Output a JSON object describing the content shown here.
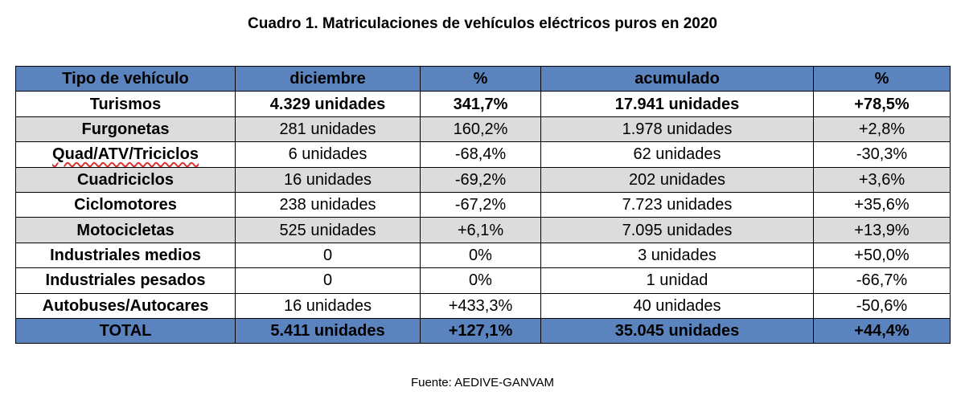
{
  "title": "Cuadro 1. Matriculaciones de vehículos eléctricos puros en 2020",
  "columns": [
    "Tipo de vehículo",
    "diciembre",
    "%",
    "acumulado",
    "%"
  ],
  "rows": [
    [
      "Turismos",
      "4.329 unidades",
      "341,7%",
      "17.941 unidades",
      "+78,5%"
    ],
    [
      "Furgonetas",
      "281 unidades",
      "160,2%",
      "1.978 unidades",
      "+2,8%"
    ],
    [
      "Quad/ATV/Triciclos",
      "6 unidades",
      "-68,4%",
      "62 unidades",
      "-30,3%"
    ],
    [
      "Cuadriciclos",
      "16 unidades",
      "-69,2%",
      "202 unidades",
      "+3,6%"
    ],
    [
      "Ciclomotores",
      "238 unidades",
      "-67,2%",
      "7.723 unidades",
      "+35,6%"
    ],
    [
      "Motocicletas",
      "525 unidades",
      "+6,1%",
      "7.095 unidades",
      "+13,9%"
    ],
    [
      "Industriales medios",
      "0",
      "0%",
      "3 unidades",
      "+50,0%"
    ],
    [
      "Industriales pesados",
      "0",
      "0%",
      "1 unidad",
      "-66,7%"
    ],
    [
      "Autobuses/Autocares",
      "16 unidades",
      "+433,3%",
      "40 unidades",
      "-50,6%"
    ]
  ],
  "total": [
    "TOTAL",
    "5.411 unidades",
    "+127,1%",
    "35.045 unidades",
    "+44,4%"
  ],
  "source": "Fuente: AEDIVE-GANVAM",
  "colors": {
    "header_bg": "#5b84bf",
    "shaded_bg": "#dcdcdc"
  }
}
